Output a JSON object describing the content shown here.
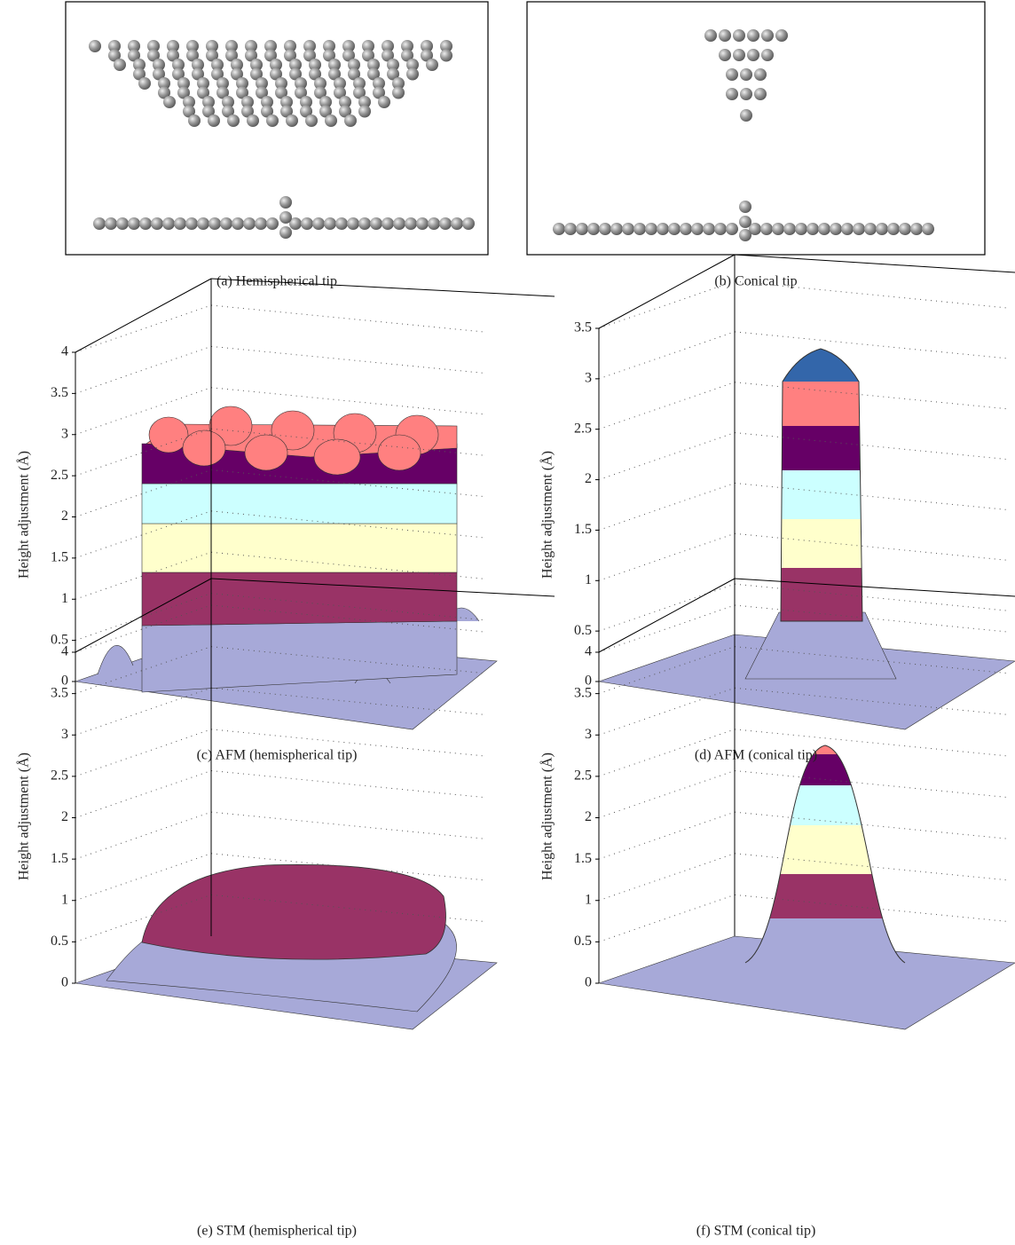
{
  "panels": [
    {
      "caption": "(a)  Hemispherical tip"
    },
    {
      "caption": "(b)  Conical tip"
    },
    {
      "caption": "(c)  AFM (hemispherical tip)",
      "y_label": "Height adjustment (Å)",
      "yticks": [
        0,
        0.5,
        1,
        1.5,
        2,
        2.5,
        3,
        3.5,
        4
      ]
    },
    {
      "caption": "(d)  AFM (conical tip)",
      "y_label": "Height adjustment (Å)",
      "yticks": [
        0,
        0.5,
        1,
        1.5,
        2,
        2.5,
        3,
        3.5
      ]
    },
    {
      "caption": "(e)  STM (hemispherical tip)",
      "y_label": "Height adjustment (Å)",
      "yticks": [
        0,
        0.5,
        1,
        1.5,
        2,
        2.5,
        3,
        3.5,
        4
      ]
    },
    {
      "caption": "(f)  STM (conical tip)",
      "y_label": "Height adjustment (Å)",
      "yticks": [
        0,
        0.5,
        1,
        1.5,
        2,
        2.5,
        3,
        3.5,
        4
      ]
    }
  ]
}
